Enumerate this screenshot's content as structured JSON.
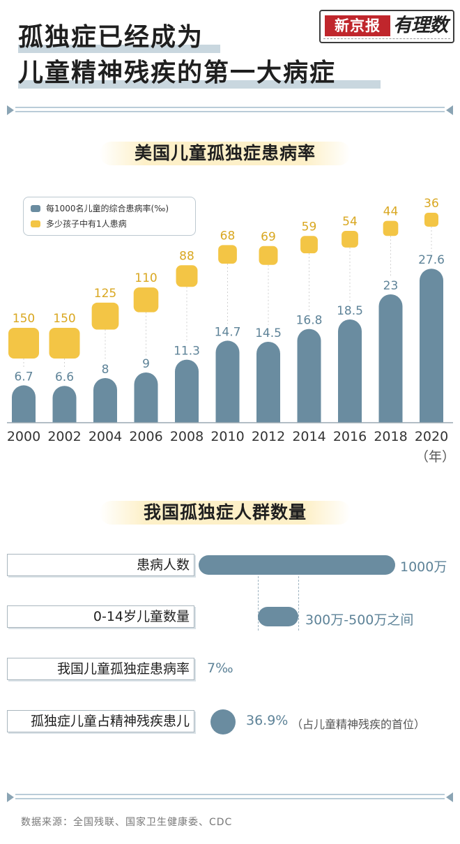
{
  "header": {
    "title_line1": "孤独症已经成为",
    "title_line2": "儿童精神残疾的第一大病症",
    "logo_brand": "新京报",
    "logo_handwriting": "有理数"
  },
  "section1": {
    "title": "美国儿童孤独症患病率",
    "year_unit": "（年）"
  },
  "section2": {
    "title": "我国孤独症人群数量",
    "rows": [
      {
        "label": "患病人数",
        "value": "1000万",
        "note": ""
      },
      {
        "label": "0-14岁儿童数量",
        "value": "300万-500万之间",
        "note": ""
      },
      {
        "label": "我国儿童孤独症患病率",
        "value": "7‰",
        "note": ""
      },
      {
        "label": "孤独症儿童占精神残疾患儿",
        "value": "36.9%",
        "note": "（占儿童精神残疾的首位）"
      }
    ]
  },
  "footer": {
    "source": "数据来源：全国残联、国家卫生健康委、CDC"
  },
  "colors": {
    "blue": "#6a8ca0",
    "yellow": "#f3c545",
    "label_blue": "#5e8398",
    "label_yellow": "#d9a720"
  },
  "chart_data": {
    "type": "bar",
    "title": "美国儿童孤独症患病率",
    "categories": [
      "2000",
      "2002",
      "2004",
      "2006",
      "2008",
      "2010",
      "2012",
      "2014",
      "2016",
      "2018",
      "2020"
    ],
    "series": [
      {
        "name": "每1000名儿童的综合患病率(‰)",
        "values": [
          6.7,
          6.6,
          8,
          9,
          11.3,
          14.7,
          14.5,
          16.8,
          18.5,
          23,
          27.6
        ]
      },
      {
        "name": "多少孩子中有1人患病",
        "values": [
          150,
          150,
          125,
          110,
          88,
          68,
          69,
          59,
          54,
          44,
          36
        ]
      }
    ],
    "xlabel": "（年）",
    "ylabel": "",
    "legend": "top-left",
    "grid": false
  }
}
